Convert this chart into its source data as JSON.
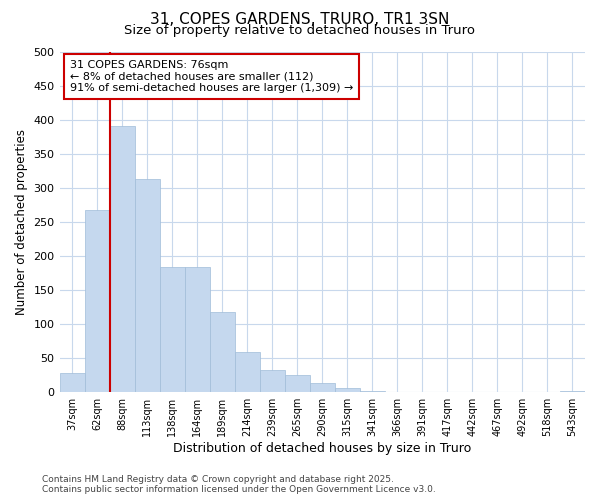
{
  "title_line1": "31, COPES GARDENS, TRURO, TR1 3SN",
  "title_line2": "Size of property relative to detached houses in Truro",
  "xlabel": "Distribution of detached houses by size in Truro",
  "ylabel": "Number of detached properties",
  "categories": [
    "37sqm",
    "62sqm",
    "88sqm",
    "113sqm",
    "138sqm",
    "164sqm",
    "189sqm",
    "214sqm",
    "239sqm",
    "265sqm",
    "290sqm",
    "315sqm",
    "341sqm",
    "366sqm",
    "391sqm",
    "417sqm",
    "442sqm",
    "467sqm",
    "492sqm",
    "518sqm",
    "543sqm"
  ],
  "values": [
    28,
    267,
    390,
    313,
    184,
    184,
    118,
    59,
    33,
    25,
    13,
    6,
    2,
    1,
    1,
    1,
    0,
    0,
    0,
    0,
    2
  ],
  "bar_color": "#c5d8ee",
  "bar_edgecolor": "#a0bcd8",
  "vline_color": "#cc0000",
  "annotation_line1": "31 COPES GARDENS: 76sqm",
  "annotation_line2": "← 8% of detached houses are smaller (112)",
  "annotation_line3": "91% of semi-detached houses are larger (1,309) →",
  "annotation_box_facecolor": "#ffffff",
  "annotation_box_edgecolor": "#cc0000",
  "ylim": [
    0,
    500
  ],
  "fig_background": "#ffffff",
  "plot_background": "#ffffff",
  "grid_color": "#c8d8ec",
  "footnote_line1": "Contains HM Land Registry data © Crown copyright and database right 2025.",
  "footnote_line2": "Contains public sector information licensed under the Open Government Licence v3.0.",
  "title_fontsize": 11,
  "subtitle_fontsize": 9.5,
  "xlabel_fontsize": 9,
  "ylabel_fontsize": 8.5,
  "tick_fontsize": 7,
  "annotation_fontsize": 8,
  "footnote_fontsize": 6.5
}
